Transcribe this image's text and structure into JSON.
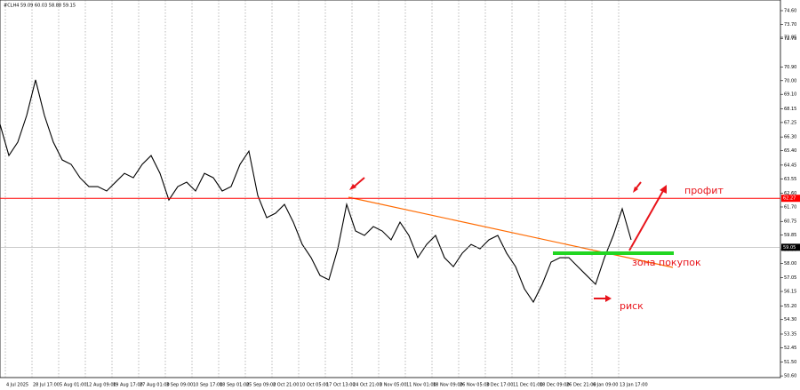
{
  "chart_data": {
    "type": "line",
    "header": "#CLH4 59.09 60.03 58.88 59.15",
    "values": [
      67.13,
      65.08,
      65.96,
      67.71,
      70.05,
      67.71,
      65.96,
      64.79,
      64.5,
      63.62,
      63.04,
      63.04,
      62.75,
      63.33,
      63.91,
      63.62,
      64.5,
      65.08,
      63.91,
      62.16,
      63.04,
      63.33,
      62.75,
      63.91,
      63.62,
      62.75,
      63.04,
      64.5,
      65.37,
      62.45,
      61.0,
      61.29,
      61.87,
      60.7,
      59.24,
      58.37,
      57.2,
      56.91,
      58.95,
      61.87,
      60.12,
      59.83,
      60.41,
      60.12,
      59.54,
      60.7,
      59.83,
      58.37,
      59.24,
      59.83,
      58.37,
      57.78,
      58.66,
      59.24,
      58.95,
      59.54,
      59.83,
      58.66,
      57.78,
      56.32,
      55.45,
      56.62,
      58.08,
      58.37,
      58.37,
      57.78,
      57.2,
      56.62,
      58.37,
      59.83,
      61.58,
      59.54
    ],
    "color": "#000000",
    "x_labels": [
      "4 Jul 2025",
      "28 Jul 17:00",
      "5 Aug 01:00",
      "12 Aug 09:00",
      "19 Aug 17:00",
      "27 Aug 01:00",
      "3 Sep 09:00",
      "10 Sep 17:00",
      "18 Sep 01:00",
      "25 Sep 09:00",
      "2 Oct 21:00",
      "10 Oct 05:00",
      "17 Oct 13:00",
      "24 Oct 21:00",
      "3 Nov 05:00",
      "11 Nov 01:00",
      "18 Nov 09:00",
      "26 Nov 05:00",
      "3 Dec 17:00",
      "11 Dec 01:00",
      "18 Dec 09:00",
      "26 Dec 21:00",
      "6 Jan 09:00",
      "13 Jan 17:00"
    ],
    "ylim": [
      50.49,
      75.3
    ],
    "yticks": [
      {
        "value": 74.6,
        "label": "74.60"
      },
      {
        "value": 73.7,
        "label": "73.70"
      },
      72.75,
      72.85,
      {
        "value": 70.9,
        "label": "70.90"
      },
      {
        "value": 70.0,
        "label": "70.00"
      },
      {
        "value": 69.1,
        "label": "69.10"
      },
      68.15,
      67.25,
      {
        "value": 66.3,
        "label": "66.30"
      },
      {
        "value": 65.4,
        "label": "65.40"
      },
      64.45,
      63.55,
      {
        "value": 62.6,
        "label": "62.60"
      },
      {
        "value": 61.7,
        "label": "61.70"
      },
      60.75,
      59.85,
      {
        "value": 58.9,
        "label": "58.90"
      },
      {
        "value": 58.0,
        "label": "58.00"
      },
      57.05,
      56.15,
      {
        "value": 55.2,
        "label": "55.20"
      },
      {
        "value": 54.3,
        "label": "54.30"
      },
      53.35,
      52.45,
      {
        "value": 51.5,
        "label": "51.50"
      },
      {
        "value": 50.6,
        "label": "50.60"
      }
    ],
    "level_line": {
      "value": 62.27,
      "label": "62.27",
      "color": "#ff0000"
    },
    "current_price": {
      "value": 59.05,
      "label": "59.05"
    },
    "annotations": {
      "profit": "профит",
      "buy_zone": "зона покупок",
      "risk": "риск"
    }
  }
}
